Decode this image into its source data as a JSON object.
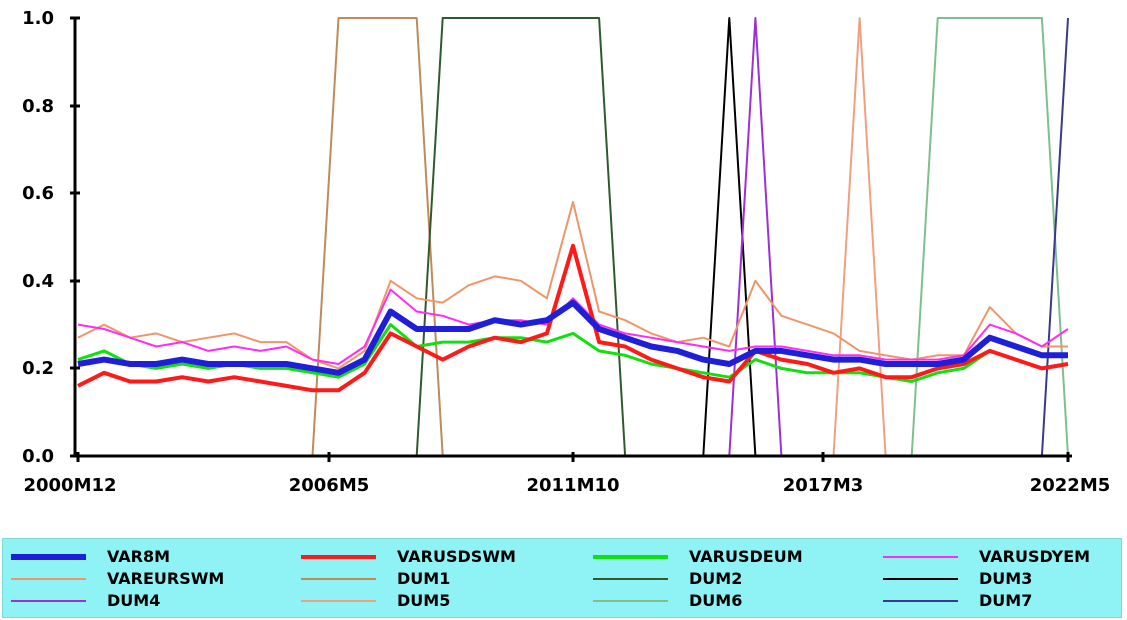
{
  "chart_data": {
    "type": "line",
    "ylim": [
      0,
      1
    ],
    "y_ticks": [
      "0.0",
      "0.2",
      "0.4",
      "0.6",
      "0.8",
      "1.0"
    ],
    "x_tick_labels": [
      "2000M12",
      "2006M5",
      "2011M10",
      "2017M3",
      "2022M5"
    ],
    "grid": false,
    "legend_position": "bottom",
    "x": [
      "2000M12",
      "2001M6",
      "2002M1",
      "2002M9",
      "2003M6",
      "2004M3",
      "2005M1",
      "2005M9",
      "2006M5",
      "2007M1",
      "2007M7",
      "2008M1",
      "2008M7",
      "2009M1",
      "2009M7",
      "2010M1",
      "2010M7",
      "2011M1",
      "2011M6",
      "2011M10",
      "2012M2",
      "2012M8",
      "2013M3",
      "2013M10",
      "2014M6",
      "2015M1",
      "2015M8",
      "2016M3",
      "2016M10",
      "2017M3",
      "2017M10",
      "2018M5",
      "2018M12",
      "2019M7",
      "2020M2",
      "2020M9",
      "2021M4",
      "2021M11",
      "2022M5"
    ],
    "series": [
      {
        "name": "VAR8M",
        "color": "#1f1fd8",
        "width": 6,
        "values": [
          0.21,
          0.22,
          0.21,
          0.21,
          0.22,
          0.21,
          0.21,
          0.21,
          0.21,
          0.2,
          0.19,
          0.22,
          0.33,
          0.29,
          0.29,
          0.29,
          0.31,
          0.3,
          0.31,
          0.35,
          0.29,
          0.27,
          0.25,
          0.24,
          0.22,
          0.21,
          0.24,
          0.24,
          0.23,
          0.22,
          0.22,
          0.21,
          0.21,
          0.21,
          0.22,
          0.27,
          0.25,
          0.23,
          0.23
        ]
      },
      {
        "name": "VARUSDSWM",
        "color": "#ff1a1a",
        "width": 4,
        "values": [
          0.16,
          0.19,
          0.17,
          0.17,
          0.18,
          0.17,
          0.18,
          0.17,
          0.16,
          0.15,
          0.15,
          0.19,
          0.28,
          0.25,
          0.22,
          0.25,
          0.27,
          0.26,
          0.28,
          0.48,
          0.26,
          0.25,
          0.22,
          0.2,
          0.18,
          0.17,
          0.24,
          0.22,
          0.21,
          0.19,
          0.2,
          0.18,
          0.18,
          0.2,
          0.21,
          0.24,
          0.22,
          0.2,
          0.21
        ]
      },
      {
        "name": "VARUSDEUM",
        "color": "#10e010",
        "width": 3,
        "values": [
          0.22,
          0.24,
          0.21,
          0.2,
          0.21,
          0.2,
          0.21,
          0.2,
          0.2,
          0.19,
          0.18,
          0.21,
          0.3,
          0.25,
          0.26,
          0.26,
          0.27,
          0.27,
          0.26,
          0.28,
          0.24,
          0.23,
          0.21,
          0.2,
          0.19,
          0.18,
          0.22,
          0.2,
          0.19,
          0.19,
          0.19,
          0.18,
          0.17,
          0.19,
          0.2,
          0.24,
          0.22,
          0.2,
          0.21
        ]
      },
      {
        "name": "VARUSDYEM",
        "color": "#ff2df0",
        "width": 2,
        "values": [
          0.3,
          0.29,
          0.27,
          0.25,
          0.26,
          0.24,
          0.25,
          0.24,
          0.25,
          0.22,
          0.21,
          0.25,
          0.38,
          0.33,
          0.32,
          0.3,
          0.31,
          0.31,
          0.3,
          0.36,
          0.3,
          0.28,
          0.27,
          0.26,
          0.25,
          0.24,
          0.25,
          0.25,
          0.24,
          0.23,
          0.23,
          0.22,
          0.22,
          0.22,
          0.23,
          0.3,
          0.28,
          0.25,
          0.29
        ]
      },
      {
        "name": "VAREURSWM",
        "color": "#f0956a",
        "width": 2,
        "values": [
          0.27,
          0.3,
          0.27,
          0.28,
          0.26,
          0.27,
          0.28,
          0.26,
          0.26,
          0.22,
          0.2,
          0.24,
          0.4,
          0.36,
          0.35,
          0.39,
          0.41,
          0.4,
          0.36,
          0.58,
          0.33,
          0.31,
          0.28,
          0.26,
          0.27,
          0.25,
          0.4,
          0.32,
          0.3,
          0.28,
          0.24,
          0.23,
          0.22,
          0.23,
          0.23,
          0.34,
          0.28,
          0.25,
          0.25
        ]
      },
      {
        "name": "DUM1",
        "color": "#c08a5a",
        "width": 2,
        "values": [
          0,
          0,
          0,
          0,
          0,
          0,
          0,
          0,
          0,
          0,
          1,
          1,
          1,
          1,
          0,
          0,
          0,
          0,
          0,
          0,
          0,
          0,
          0,
          0,
          0,
          0,
          0,
          0,
          0,
          0,
          0,
          0,
          0,
          0,
          0,
          0,
          0,
          0,
          0
        ]
      },
      {
        "name": "DUM2",
        "color": "#2f5a2f",
        "width": 2,
        "values": [
          0,
          0,
          0,
          0,
          0,
          0,
          0,
          0,
          0,
          0,
          0,
          0,
          0,
          0,
          1,
          1,
          1,
          1,
          1,
          1,
          1,
          0,
          0,
          0,
          0,
          0,
          0,
          0,
          0,
          0,
          0,
          0,
          0,
          0,
          0,
          0,
          0,
          0,
          0
        ]
      },
      {
        "name": "DUM3",
        "color": "#000000",
        "width": 2,
        "values": [
          0,
          0,
          0,
          0,
          0,
          0,
          0,
          0,
          0,
          0,
          0,
          0,
          0,
          0,
          0,
          0,
          0,
          0,
          0,
          0,
          0,
          0,
          0,
          0,
          0,
          1,
          0,
          0,
          0,
          0,
          0,
          0,
          0,
          0,
          0,
          0,
          0,
          0,
          0
        ]
      },
      {
        "name": "DUM4",
        "color": "#9b30d9",
        "width": 2,
        "values": [
          0,
          0,
          0,
          0,
          0,
          0,
          0,
          0,
          0,
          0,
          0,
          0,
          0,
          0,
          0,
          0,
          0,
          0,
          0,
          0,
          0,
          0,
          0,
          0,
          0,
          0,
          1,
          0,
          0,
          0,
          0,
          0,
          0,
          0,
          0,
          0,
          0,
          0,
          0
        ]
      },
      {
        "name": "DUM5",
        "color": "#f0a080",
        "width": 2,
        "values": [
          0,
          0,
          0,
          0,
          0,
          0,
          0,
          0,
          0,
          0,
          0,
          0,
          0,
          0,
          0,
          0,
          0,
          0,
          0,
          0,
          0,
          0,
          0,
          0,
          0,
          0,
          0,
          0,
          0,
          0,
          1,
          0,
          0,
          0,
          0,
          0,
          0,
          0,
          0
        ]
      },
      {
        "name": "DUM6",
        "color": "#7fbf8f",
        "width": 2,
        "values": [
          0,
          0,
          0,
          0,
          0,
          0,
          0,
          0,
          0,
          0,
          0,
          0,
          0,
          0,
          0,
          0,
          0,
          0,
          0,
          0,
          0,
          0,
          0,
          0,
          0,
          0,
          0,
          0,
          0,
          0,
          0,
          0,
          0,
          1,
          1,
          1,
          1,
          1,
          0
        ]
      },
      {
        "name": "DUM7",
        "color": "#3a3a8a",
        "width": 2,
        "values": [
          0,
          0,
          0,
          0,
          0,
          0,
          0,
          0,
          0,
          0,
          0,
          0,
          0,
          0,
          0,
          0,
          0,
          0,
          0,
          0,
          0,
          0,
          0,
          0,
          0,
          0,
          0,
          0,
          0,
          0,
          0,
          0,
          0,
          0,
          0,
          0,
          0,
          0,
          1
        ]
      }
    ]
  }
}
